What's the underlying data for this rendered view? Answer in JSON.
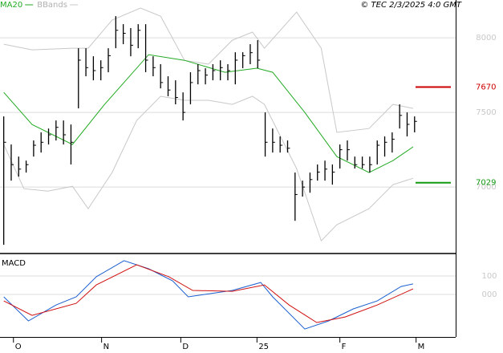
{
  "chart_data": [
    {
      "type": "ohlc",
      "copyright": "© TEC 2/3/2025 4:0 GMT",
      "xlim": [
        -0.5,
        60.5
      ],
      "ylim": [
        6560,
        8253
      ],
      "yticks": [
        7000,
        7500,
        8000
      ],
      "grid": true,
      "bar_color": "#000000",
      "bars": {
        "high": [
          7473,
          7285,
          7204,
          7177,
          7312,
          7366,
          7392,
          7446,
          7446,
          7419,
          7930,
          7930,
          7876,
          7849,
          7930,
          8145,
          8091,
          8065,
          8091,
          8091,
          7876,
          7823,
          7742,
          7715,
          7634,
          7769,
          7823,
          7796,
          7823,
          7849,
          7823,
          7903,
          7903,
          7957,
          7984,
          7500,
          7392,
          7339,
          7312,
          7097,
          7043,
          7097,
          7151,
          7177,
          7151,
          7285,
          7312,
          7204,
          7204,
          7204,
          7312,
          7339,
          7366,
          7554,
          7500,
          7473
        ],
        "low": [
          6613,
          7043,
          7070,
          7097,
          7204,
          7231,
          7285,
          7312,
          7285,
          7151,
          7527,
          7742,
          7715,
          7715,
          7769,
          7930,
          7957,
          7876,
          7930,
          7769,
          7742,
          7661,
          7608,
          7554,
          7446,
          7554,
          7688,
          7688,
          7715,
          7715,
          7715,
          7688,
          7796,
          7823,
          7796,
          7204,
          7231,
          7231,
          7231,
          6774,
          6936,
          6962,
          7043,
          7043,
          7016,
          7124,
          7177,
          7124,
          7124,
          7097,
          7151,
          7204,
          7231,
          7392,
          7339,
          7366
        ],
        "close": [
          7300,
          7150,
          7120,
          7150,
          7280,
          7300,
          7350,
          7400,
          7350,
          7300,
          7850,
          7800,
          7780,
          7800,
          7880,
          8050,
          8030,
          7950,
          8050,
          7850,
          7800,
          7700,
          7650,
          7600,
          7500,
          7700,
          7780,
          7750,
          7780,
          7800,
          7780,
          7850,
          7880,
          7900,
          7850,
          7300,
          7300,
          7280,
          7260,
          6950,
          7000,
          7050,
          7100,
          7120,
          7100,
          7250,
          7250,
          7150,
          7150,
          7150,
          7280,
          7300,
          7320,
          7480,
          7420,
          7440
        ]
      },
      "series": [
        {
          "name": "MA20",
          "color": "#22aa22",
          "x": [
            0,
            3.8,
            9.2,
            13.5,
            19.4,
            24.2,
            29.6,
            33.9,
            36.0,
            40.3,
            44.6,
            48.9,
            52.1,
            54.8
          ],
          "values": [
            7634,
            7419,
            7285,
            7554,
            7887,
            7849,
            7769,
            7796,
            7769,
            7500,
            7204,
            7097,
            7177,
            7269
          ]
        }
      ],
      "bands": {
        "name": "BBands",
        "color": "#c8c8c8",
        "upper": {
          "x": [
            0,
            3.8,
            9.2,
            11.3,
            14.5,
            18.3,
            21.0,
            24.2,
            27.4,
            30.6,
            33.3,
            34.9,
            39.2,
            42.5,
            44.6,
            48.9,
            52.1,
            54.8
          ],
          "values": [
            7957,
            7919,
            7930,
            7930,
            8118,
            8199,
            8145,
            7849,
            7823,
            7984,
            8038,
            7930,
            8172,
            7930,
            7366,
            7392,
            7554,
            7527
          ]
        },
        "lower": {
          "x": [
            0,
            2.7,
            5.9,
            9.2,
            11.3,
            14.5,
            17.8,
            21.0,
            24.2,
            27.4,
            30.6,
            33.3,
            34.9,
            39.2,
            42.5,
            44.6,
            48.9,
            52.1,
            54.8
          ],
          "values": [
            7285,
            6989,
            6973,
            7005,
            6855,
            7097,
            7446,
            7608,
            7581,
            7581,
            7554,
            7608,
            7554,
            7124,
            6640,
            6747,
            6855,
            7016,
            7059
          ]
        }
      },
      "levels": [
        {
          "value": 7670,
          "color": "#cc0000"
        },
        {
          "value": 7029,
          "color": "#119911"
        }
      ]
    },
    {
      "type": "line",
      "title": "MACD",
      "xlim": [
        -0.5,
        60.5
      ],
      "ylim": [
        -230,
        213
      ],
      "yticks": [
        100,
        {
          "value": 0,
          "label": "000"
        }
      ],
      "grid": true,
      "xticks": [
        {
          "value": 1.3,
          "label": "O"
        },
        {
          "value": 13.1,
          "label": "N"
        },
        {
          "value": 23.7,
          "label": "D"
        },
        {
          "value": 33.9,
          "label": "25"
        },
        {
          "value": 45.0,
          "label": "F"
        },
        {
          "value": 55.2,
          "label": "M"
        }
      ],
      "series": [
        {
          "color": "#1a5fd0",
          "x": [
            0,
            3.3,
            7.0,
            9.7,
            12.4,
            16.1,
            19.4,
            22.6,
            24.7,
            26.9,
            30.6,
            34.4,
            36.0,
            40.3,
            43.5,
            46.8,
            50.0,
            53.2,
            54.8
          ],
          "values": [
            -13,
            -143,
            -57,
            -13,
            96,
            183,
            139,
            74,
            -13,
            0,
            22,
            65,
            -13,
            -187,
            -143,
            -78,
            -35,
            43,
            57
          ]
        },
        {
          "color": "#d01010",
          "x": [
            0,
            3.8,
            9.7,
            12.4,
            17.8,
            22.1,
            25.3,
            30.6,
            34.9,
            38.2,
            41.9,
            45.7,
            50.0,
            54.8
          ],
          "values": [
            -35,
            -113,
            -48,
            52,
            161,
            96,
            22,
            17,
            52,
            -57,
            -152,
            -122,
            -57,
            30
          ]
        }
      ]
    }
  ]
}
